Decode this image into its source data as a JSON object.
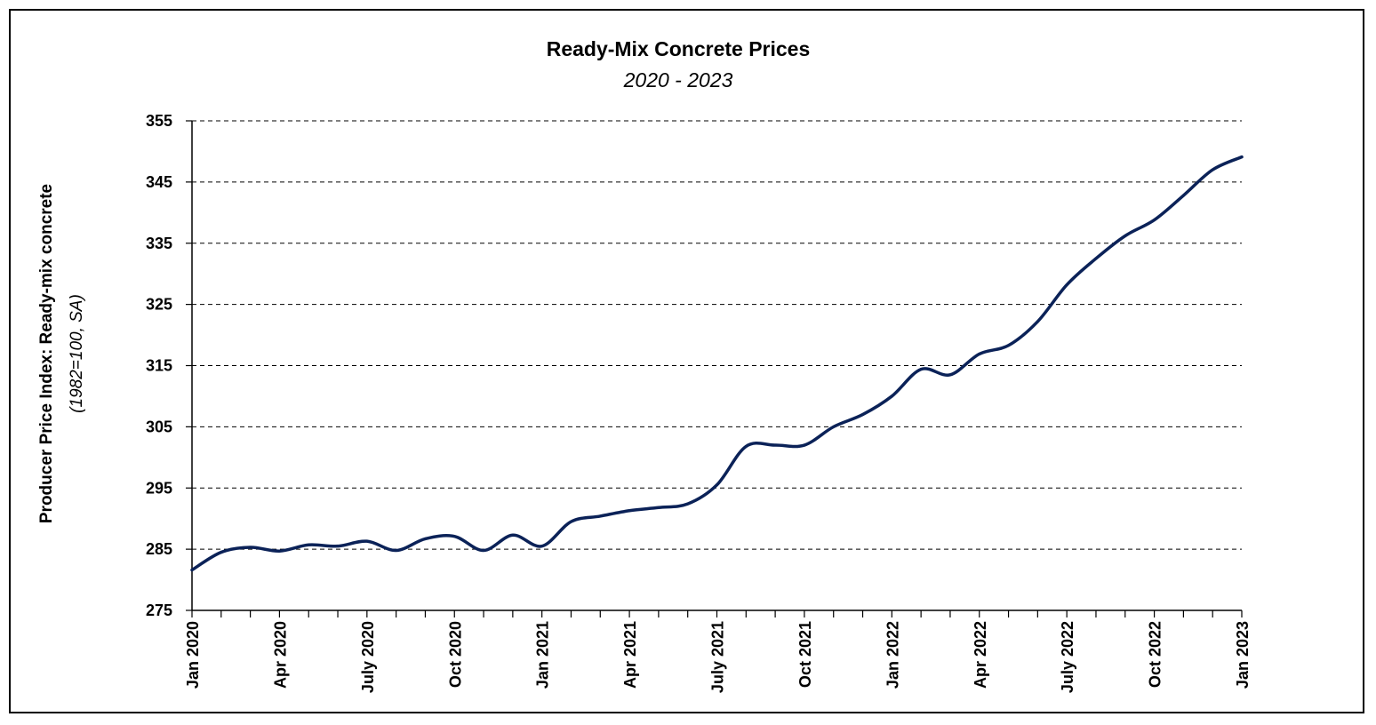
{
  "chart_data": {
    "type": "line",
    "title": "Ready-Mix Concrete Prices",
    "subtitle": "2020 - 2023",
    "ylabel": "Producer Price Index: Ready-mix concrete",
    "ylabel_note": "(1982=100, SA)",
    "ylim": [
      275,
      355
    ],
    "yticks": [
      275,
      285,
      295,
      305,
      315,
      325,
      335,
      345,
      355
    ],
    "grid": "horizontal dashed",
    "x_tick_labels": [
      {
        "index": 0,
        "label": "Jan 2020"
      },
      {
        "index": 3,
        "label": "Apr 2020"
      },
      {
        "index": 6,
        "label": "July 2020"
      },
      {
        "index": 9,
        "label": "Oct 2020"
      },
      {
        "index": 12,
        "label": "Jan 2021"
      },
      {
        "index": 15,
        "label": "Apr 2021"
      },
      {
        "index": 18,
        "label": "July 2021"
      },
      {
        "index": 21,
        "label": "Oct 2021"
      },
      {
        "index": 24,
        "label": "Jan 2022"
      },
      {
        "index": 27,
        "label": "Apr 2022"
      },
      {
        "index": 30,
        "label": "July 2022"
      },
      {
        "index": 33,
        "label": "Oct 2022"
      },
      {
        "index": 36,
        "label": "Jan 2023"
      }
    ],
    "x": [
      "2020-01",
      "2020-02",
      "2020-03",
      "2020-04",
      "2020-05",
      "2020-06",
      "2020-07",
      "2020-08",
      "2020-09",
      "2020-10",
      "2020-11",
      "2020-12",
      "2021-01",
      "2021-02",
      "2021-03",
      "2021-04",
      "2021-05",
      "2021-06",
      "2021-07",
      "2021-08",
      "2021-09",
      "2021-10",
      "2021-11",
      "2021-12",
      "2022-01",
      "2022-02",
      "2022-03",
      "2022-04",
      "2022-05",
      "2022-06",
      "2022-07",
      "2022-08",
      "2022-09",
      "2022-10",
      "2022-11",
      "2022-12",
      "2023-01"
    ],
    "series": [
      {
        "color": "#0b2258",
        "values": [
          281.6,
          284.5,
          285.3,
          284.7,
          285.7,
          285.5,
          286.3,
          284.8,
          286.7,
          287.1,
          284.8,
          287.3,
          285.5,
          289.5,
          290.4,
          291.3,
          291.8,
          292.4,
          295.5,
          301.8,
          302.0,
          302.0,
          305.0,
          307.0,
          310.0,
          314.4,
          313.5,
          316.9,
          318.3,
          322.2,
          328.2,
          332.5,
          336.2,
          338.8,
          342.8,
          347.0,
          349.1
        ]
      }
    ]
  }
}
